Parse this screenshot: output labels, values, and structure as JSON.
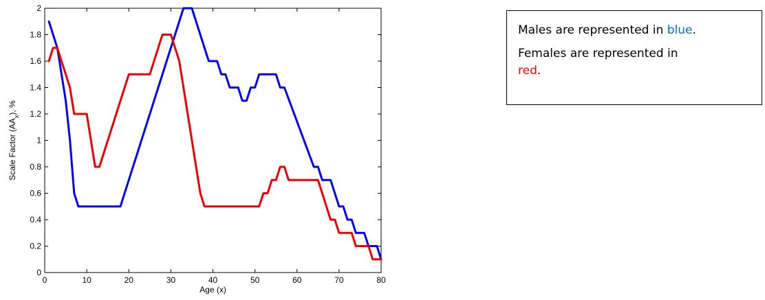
{
  "chart_data": {
    "type": "line",
    "xlabel": "Age (x)",
    "ylabel_main": "Scale Factor (AA",
    "ylabel_sub": "x",
    "ylabel_end": "), %",
    "xlim": [
      0,
      80
    ],
    "ylim": [
      0,
      2
    ],
    "xticks": [
      0,
      10,
      20,
      30,
      40,
      50,
      60,
      70,
      80
    ],
    "yticks": [
      0,
      0.2,
      0.4,
      0.6,
      0.8,
      1,
      1.2,
      1.4,
      1.6,
      1.8,
      2
    ],
    "grid": false,
    "series": [
      {
        "color": "#0000ee",
        "points": [
          [
            1,
            1.9
          ],
          [
            2,
            1.8
          ],
          [
            3,
            1.7
          ],
          [
            4,
            1.5
          ],
          [
            5,
            1.3
          ],
          [
            6,
            1.0
          ],
          [
            7,
            0.6
          ],
          [
            8,
            0.5
          ],
          [
            10,
            0.5
          ],
          [
            18,
            0.5
          ],
          [
            33,
            2.0
          ],
          [
            34,
            2.0
          ],
          [
            35,
            2.0
          ],
          [
            39,
            1.6
          ],
          [
            41,
            1.6
          ],
          [
            42,
            1.5
          ],
          [
            43,
            1.5
          ],
          [
            44,
            1.4
          ],
          [
            46,
            1.4
          ],
          [
            47,
            1.3
          ],
          [
            48,
            1.3
          ],
          [
            49,
            1.4
          ],
          [
            50,
            1.4
          ],
          [
            51,
            1.5
          ],
          [
            55,
            1.5
          ],
          [
            56,
            1.4
          ],
          [
            57,
            1.4
          ],
          [
            64,
            0.8
          ],
          [
            65,
            0.8
          ],
          [
            66,
            0.7
          ],
          [
            68,
            0.7
          ],
          [
            70,
            0.5
          ],
          [
            71,
            0.5
          ],
          [
            72,
            0.4
          ],
          [
            73,
            0.4
          ],
          [
            74,
            0.3
          ],
          [
            76,
            0.3
          ],
          [
            77,
            0.2
          ],
          [
            79,
            0.2
          ],
          [
            80,
            0.1
          ]
        ]
      },
      {
        "color": "#ee0000",
        "points": [
          [
            1,
            1.6
          ],
          [
            2,
            1.7
          ],
          [
            3,
            1.7
          ],
          [
            6,
            1.4
          ],
          [
            7,
            1.2
          ],
          [
            10,
            1.2
          ],
          [
            12,
            0.8
          ],
          [
            13,
            0.8
          ],
          [
            20,
            1.5
          ],
          [
            25,
            1.5
          ],
          [
            28,
            1.8
          ],
          [
            30,
            1.8
          ],
          [
            32,
            1.6
          ],
          [
            37,
            0.6
          ],
          [
            38,
            0.5
          ],
          [
            51,
            0.5
          ],
          [
            52,
            0.6
          ],
          [
            53,
            0.6
          ],
          [
            54,
            0.7
          ],
          [
            55,
            0.7
          ],
          [
            56,
            0.8
          ],
          [
            57,
            0.8
          ],
          [
            58,
            0.7
          ],
          [
            65,
            0.7
          ],
          [
            68,
            0.4
          ],
          [
            69,
            0.4
          ],
          [
            70,
            0.3
          ],
          [
            73,
            0.3
          ],
          [
            74,
            0.2
          ],
          [
            77,
            0.2
          ],
          [
            78,
            0.1
          ],
          [
            80,
            0.1
          ]
        ]
      }
    ]
  },
  "legend": {
    "line1_prefix": "Males are represented in ",
    "line1_color_word": "blue",
    "line1_suffix": ".",
    "line2_prefix": "Females are represented in ",
    "line2_color_word": "red",
    "line2_suffix": ".",
    "male_color": "#0070c0",
    "female_color": "#ff0000"
  }
}
